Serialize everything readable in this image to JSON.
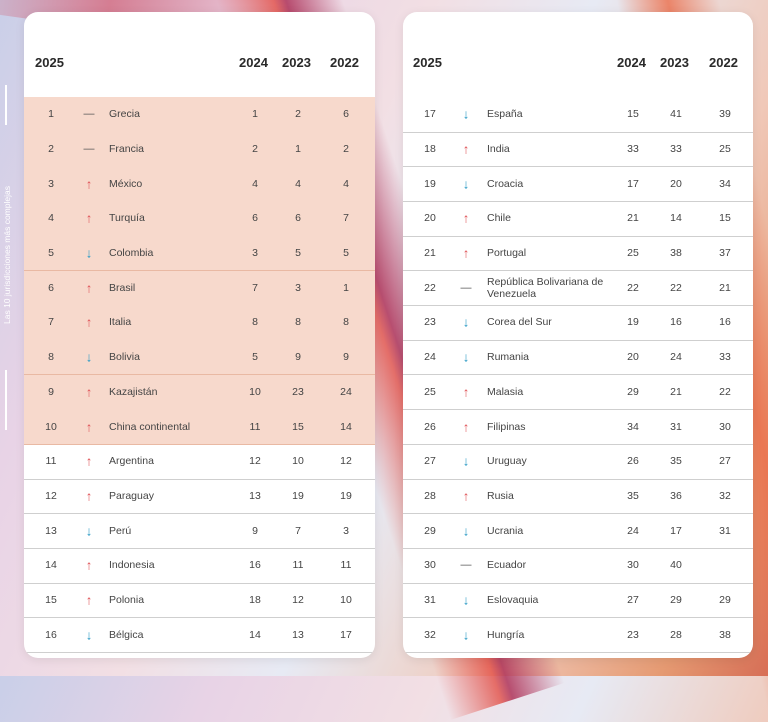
{
  "side_label": "Las 10 jurisdicciones más complejas",
  "headers": {
    "rank": "2025",
    "y2024": "2024",
    "y2023": "2023",
    "y2022": "2022"
  },
  "colors": {
    "up": "#e0565b",
    "down": "#2a9ac4",
    "highlight": "#f7d9cc"
  },
  "trend_symbols": {
    "up": "↑",
    "down": "↓",
    "same": "—"
  },
  "left_rows": [
    {
      "rank": "1",
      "trend": "same",
      "name": "Grecia",
      "y2024": "1",
      "y2023": "2",
      "y2022": "6",
      "hl": true
    },
    {
      "rank": "2",
      "trend": "same",
      "name": "Francia",
      "y2024": "2",
      "y2023": "1",
      "y2022": "2",
      "hl": true
    },
    {
      "rank": "3",
      "trend": "up",
      "name": "México",
      "y2024": "4",
      "y2023": "4",
      "y2022": "4",
      "hl": true
    },
    {
      "rank": "4",
      "trend": "up",
      "name": "Turquía",
      "y2024": "6",
      "y2023": "6",
      "y2022": "7",
      "hl": true
    },
    {
      "rank": "5",
      "trend": "down",
      "name": "Colombia",
      "y2024": "3",
      "y2023": "5",
      "y2022": "5",
      "hl": true
    },
    {
      "rank": "6",
      "trend": "up",
      "name": "Brasil",
      "y2024": "7",
      "y2023": "3",
      "y2022": "1",
      "hl": true
    },
    {
      "rank": "7",
      "trend": "up",
      "name": "Italia",
      "y2024": "8",
      "y2023": "8",
      "y2022": "8",
      "hl": true
    },
    {
      "rank": "8",
      "trend": "down",
      "name": "Bolivia",
      "y2024": "5",
      "y2023": "9",
      "y2022": "9",
      "hl": true
    },
    {
      "rank": "9",
      "trend": "up",
      "name": "Kazajistán",
      "y2024": "10",
      "y2023": "23",
      "y2022": "24",
      "hl": true
    },
    {
      "rank": "10",
      "trend": "up",
      "name": "China continental",
      "y2024": "11",
      "y2023": "15",
      "y2022": "14",
      "hl": true
    },
    {
      "rank": "11",
      "trend": "up",
      "name": "Argentina",
      "y2024": "12",
      "y2023": "10",
      "y2022": "12",
      "hl": false
    },
    {
      "rank": "12",
      "trend": "up",
      "name": "Paraguay",
      "y2024": "13",
      "y2023": "19",
      "y2022": "19",
      "hl": false
    },
    {
      "rank": "13",
      "trend": "down",
      "name": "Perú",
      "y2024": "9",
      "y2023": "7",
      "y2022": "3",
      "hl": false
    },
    {
      "rank": "14",
      "trend": "up",
      "name": "Indonesia",
      "y2024": "16",
      "y2023": "11",
      "y2022": "11",
      "hl": false
    },
    {
      "rank": "15",
      "trend": "up",
      "name": "Polonia",
      "y2024": "18",
      "y2023": "12",
      "y2022": "10",
      "hl": false
    },
    {
      "rank": "16",
      "trend": "down",
      "name": "Bélgica",
      "y2024": "14",
      "y2023": "13",
      "y2022": "17",
      "hl": false
    }
  ],
  "right_rows": [
    {
      "rank": "17",
      "trend": "down",
      "name": "España",
      "y2024": "15",
      "y2023": "41",
      "y2022": "39"
    },
    {
      "rank": "18",
      "trend": "up",
      "name": "India",
      "y2024": "33",
      "y2023": "33",
      "y2022": "25"
    },
    {
      "rank": "19",
      "trend": "down",
      "name": "Croacia",
      "y2024": "17",
      "y2023": "20",
      "y2022": "34"
    },
    {
      "rank": "20",
      "trend": "up",
      "name": "Chile",
      "y2024": "21",
      "y2023": "14",
      "y2022": "15"
    },
    {
      "rank": "21",
      "trend": "up",
      "name": "Portugal",
      "y2024": "25",
      "y2023": "38",
      "y2022": "37"
    },
    {
      "rank": "22",
      "trend": "same",
      "name": "República Bolivariana de Venezuela",
      "y2024": "22",
      "y2023": "22",
      "y2022": "21"
    },
    {
      "rank": "23",
      "trend": "down",
      "name": "Corea del Sur",
      "y2024": "19",
      "y2023": "16",
      "y2022": "16"
    },
    {
      "rank": "24",
      "trend": "down",
      "name": "Rumania",
      "y2024": "20",
      "y2023": "24",
      "y2022": "33"
    },
    {
      "rank": "25",
      "trend": "up",
      "name": "Malasia",
      "y2024": "29",
      "y2023": "21",
      "y2022": "22"
    },
    {
      "rank": "26",
      "trend": "up",
      "name": "Filipinas",
      "y2024": "34",
      "y2023": "31",
      "y2022": "30"
    },
    {
      "rank": "27",
      "trend": "down",
      "name": "Uruguay",
      "y2024": "26",
      "y2023": "35",
      "y2022": "27"
    },
    {
      "rank": "28",
      "trend": "up",
      "name": "Rusia",
      "y2024": "35",
      "y2023": "36",
      "y2022": "32"
    },
    {
      "rank": "29",
      "trend": "down",
      "name": "Ucrania",
      "y2024": "24",
      "y2023": "17",
      "y2022": "31"
    },
    {
      "rank": "30",
      "trend": "same",
      "name": "Ecuador",
      "y2024": "30",
      "y2023": "40",
      "y2022": ""
    },
    {
      "rank": "31",
      "trend": "down",
      "name": "Eslovaquia",
      "y2024": "27",
      "y2023": "29",
      "y2022": "29"
    },
    {
      "rank": "32",
      "trend": "down",
      "name": "Hungría",
      "y2024": "23",
      "y2023": "28",
      "y2022": "38"
    }
  ]
}
